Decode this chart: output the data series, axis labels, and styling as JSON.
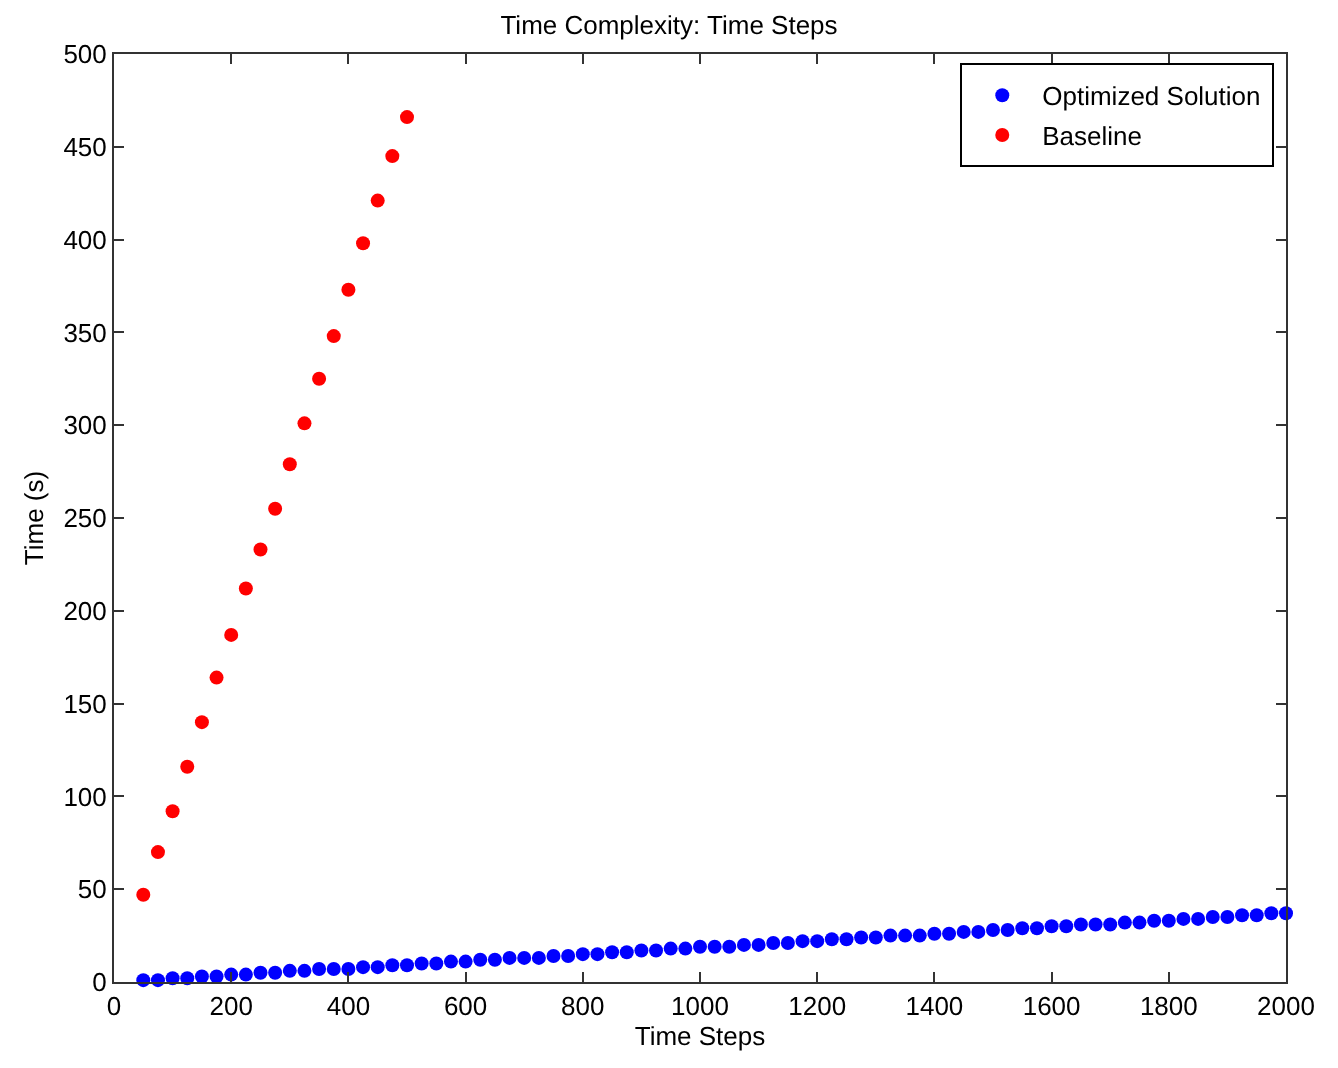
{
  "chart_data": {
    "type": "scatter",
    "title": "Time Complexity: Time Steps",
    "xlabel": "Time Steps",
    "ylabel": "Time (s)",
    "xlim": [
      0,
      2000
    ],
    "xticks": [
      0,
      200,
      400,
      600,
      800,
      1000,
      1200,
      1400,
      1600,
      1800,
      2000
    ],
    "ylim": [
      0,
      500
    ],
    "yticks": [
      0,
      50,
      100,
      150,
      200,
      250,
      300,
      350,
      400,
      450,
      500
    ],
    "grid": false,
    "legend": "top right",
    "marker": "circle",
    "series": [
      {
        "name": "Optimized Solution",
        "color": "#0000ff",
        "x": [
          50,
          75,
          100,
          125,
          150,
          175,
          200,
          225,
          250,
          275,
          300,
          325,
          350,
          375,
          400,
          425,
          450,
          475,
          500,
          525,
          550,
          575,
          600,
          625,
          650,
          675,
          700,
          725,
          750,
          775,
          800,
          825,
          850,
          875,
          900,
          925,
          950,
          975,
          1000,
          1025,
          1050,
          1075,
          1100,
          1125,
          1150,
          1175,
          1200,
          1225,
          1250,
          1275,
          1300,
          1325,
          1350,
          1375,
          1400,
          1425,
          1450,
          1475,
          1500,
          1525,
          1550,
          1575,
          1600,
          1625,
          1650,
          1675,
          1700,
          1725,
          1750,
          1775,
          1800,
          1825,
          1850,
          1875,
          1900,
          1925,
          1950,
          1975,
          2000
        ],
        "values": [
          1,
          1,
          2,
          2,
          3,
          3,
          4,
          4,
          5,
          5,
          6,
          6,
          7,
          7,
          7,
          8,
          8,
          9,
          9,
          10,
          10,
          11,
          11,
          12,
          12,
          13,
          13,
          13,
          14,
          14,
          15,
          15,
          16,
          16,
          17,
          17,
          18,
          18,
          19,
          19,
          19,
          20,
          20,
          21,
          21,
          22,
          22,
          23,
          23,
          24,
          24,
          25,
          25,
          25,
          26,
          26,
          27,
          27,
          28,
          28,
          29,
          29,
          30,
          30,
          31,
          31,
          31,
          32,
          32,
          33,
          33,
          34,
          34,
          35,
          35,
          36,
          36,
          37,
          37
        ]
      },
      {
        "name": "Baseline",
        "color": "#ff0000",
        "x": [
          50,
          75,
          100,
          125,
          150,
          175,
          200,
          225,
          250,
          275,
          300,
          325,
          350,
          375,
          400,
          425,
          450,
          475,
          500
        ],
        "values": [
          47,
          70,
          92,
          116,
          140,
          164,
          187,
          212,
          233,
          255,
          279,
          301,
          325,
          348,
          373,
          398,
          421,
          445,
          466
        ]
      }
    ]
  }
}
